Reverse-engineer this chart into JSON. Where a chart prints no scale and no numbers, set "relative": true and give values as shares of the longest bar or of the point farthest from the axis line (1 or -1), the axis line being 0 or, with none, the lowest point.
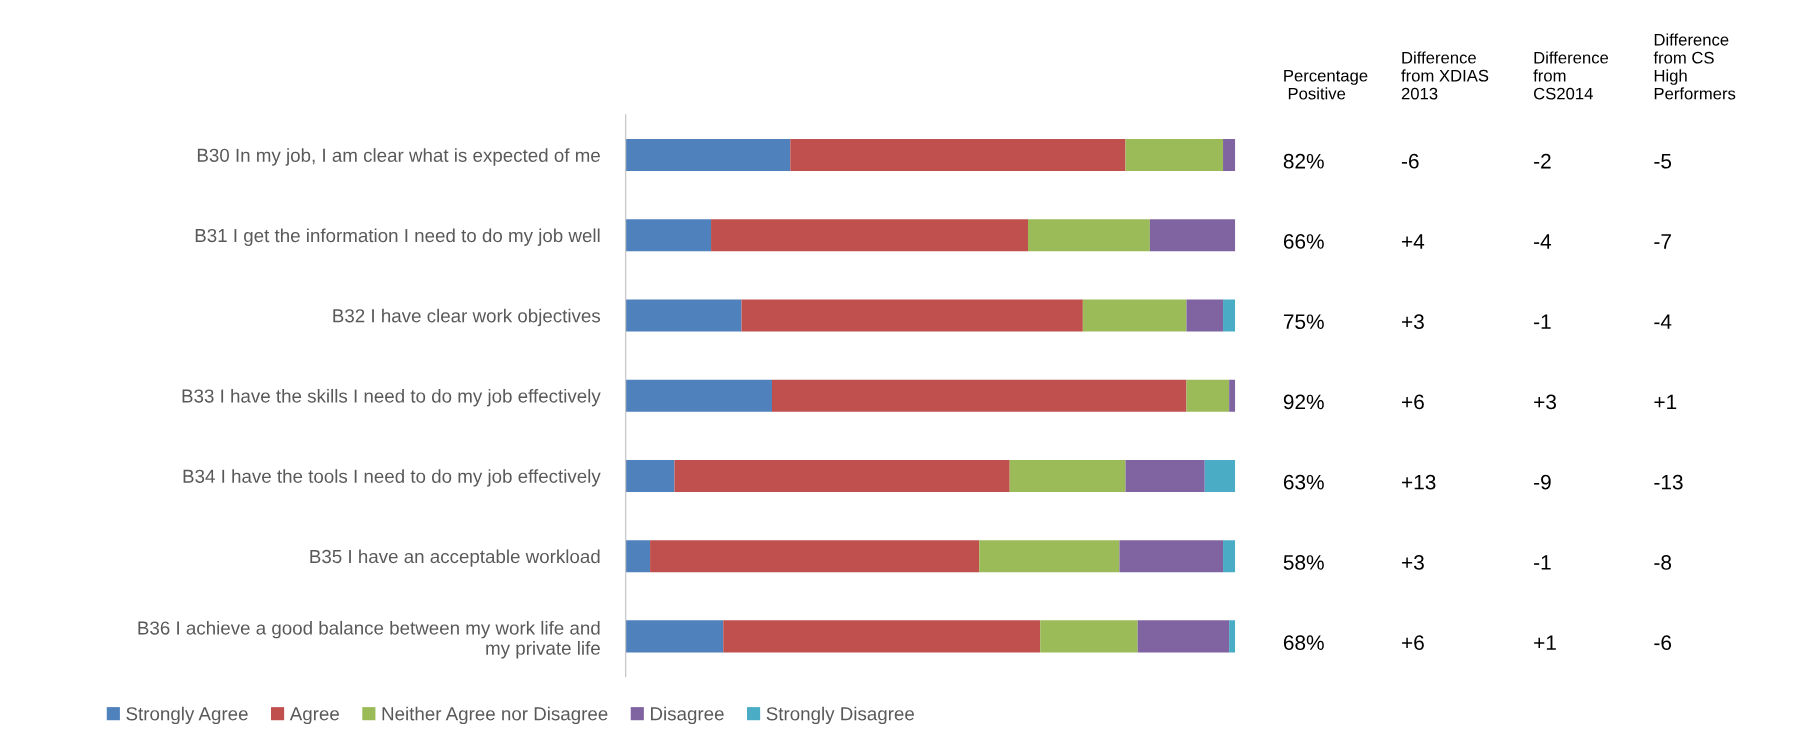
{
  "chart_data": [
    {
      "type": "bar",
      "orientation": "horizontal",
      "stacked": true,
      "relative": true,
      "grid": false,
      "legend": "bottom",
      "categories": [
        "B30 In my job, I am clear what is expected of me",
        "B31 I get the information I need to do my job well",
        "B32 I have clear work objectives",
        "B33 I have the skills I need to do my job effectively",
        "B34 I have the tools I need to do my job effectively",
        "B35 I have an acceptable workload",
        "B36 I achieve a good balance between my work life and\nmy private life"
      ],
      "series": [
        {
          "name": "Strongly Agree",
          "color": "#4f81bd",
          "values": [
            0.27,
            0.14,
            0.19,
            0.24,
            0.08,
            0.04,
            0.16
          ]
        },
        {
          "name": "Agree",
          "color": "#c0504d",
          "values": [
            0.55,
            0.52,
            0.56,
            0.68,
            0.55,
            0.54,
            0.52
          ]
        },
        {
          "name": "Neither Agree nor Disagree",
          "color": "#9bbb59",
          "values": [
            0.16,
            0.2,
            0.17,
            0.07,
            0.19,
            0.23,
            0.16
          ]
        },
        {
          "name": "Disagree",
          "color": "#8064a2",
          "values": [
            0.02,
            0.14,
            0.06,
            0.01,
            0.13,
            0.17,
            0.15
          ]
        },
        {
          "name": "Strongly Disagree",
          "color": "#4bacc6",
          "values": [
            0,
            0,
            0.02,
            0,
            0.05,
            0.02,
            0.01
          ]
        }
      ]
    },
    {
      "type": "other",
      "categories": [
        "Percentage\n Positive",
        "Difference\nfrom XDIAS\n2013",
        "Difference\nfrom\nCS2014",
        "Difference\nfrom CS\nHigh\nPerformers"
      ],
      "cell_labels": [
        [
          "82%",
          "-6",
          "-2",
          "-5"
        ],
        [
          "66%",
          "+4",
          "-4",
          "-7"
        ],
        [
          "75%",
          "+3",
          "-1",
          "-4"
        ],
        [
          "92%",
          "+6",
          "+3",
          "+1"
        ],
        [
          "63%",
          "+13",
          "-9",
          "-13"
        ],
        [
          "58%",
          "+3",
          "-1",
          "-8"
        ],
        [
          "68%",
          "+6",
          "+1",
          "-6"
        ]
      ]
    }
  ]
}
